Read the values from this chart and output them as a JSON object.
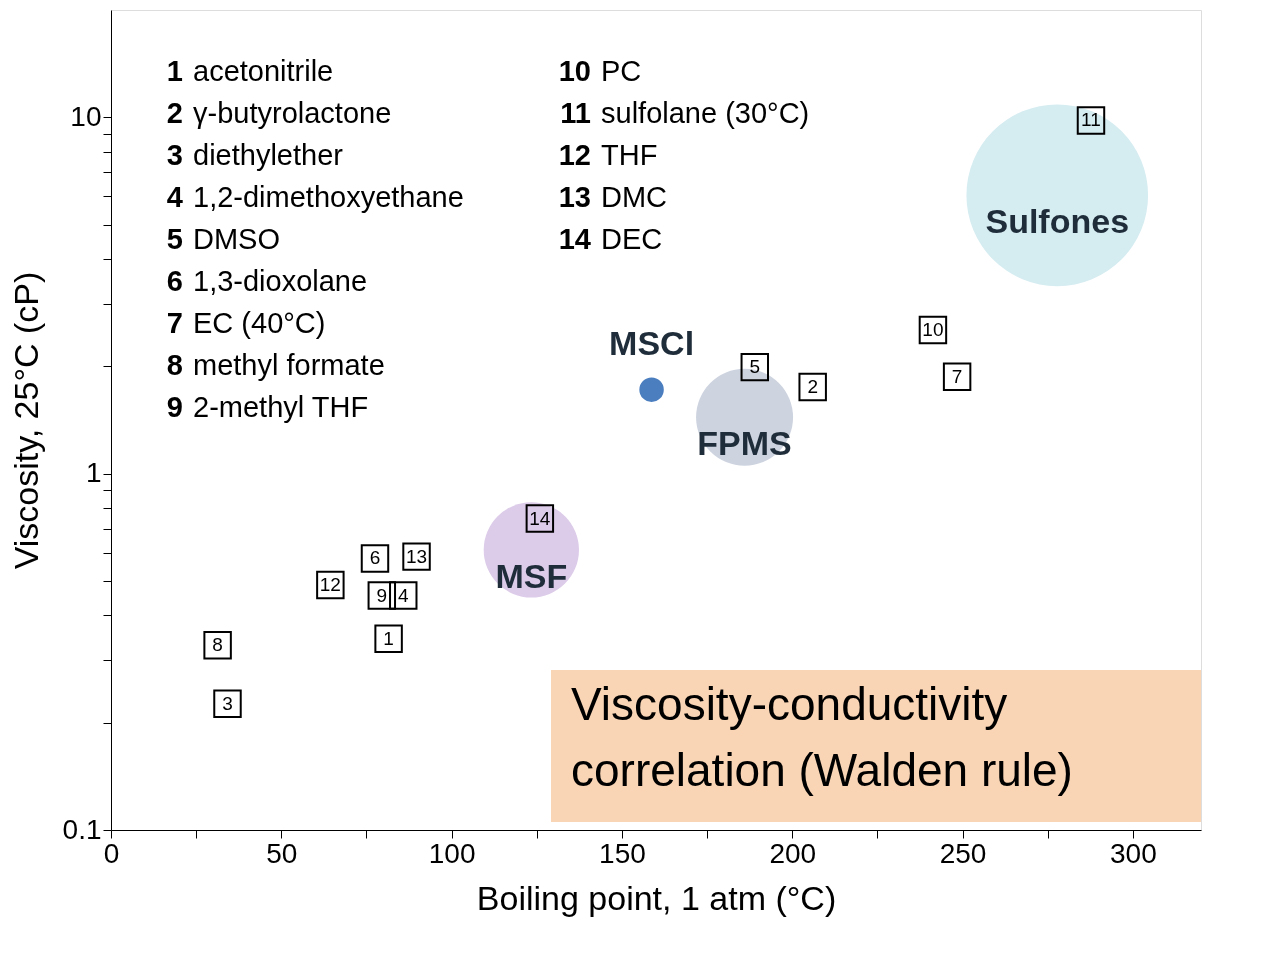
{
  "chart_data": {
    "type": "scatter",
    "xlabel": "Boiling point, 1 atm (°C)",
    "ylabel": "Viscosity, 25°C (cP)",
    "xlim": [
      0,
      320
    ],
    "ylim": [
      0.1,
      20
    ],
    "log": "y",
    "grid": false,
    "xticks": [
      0,
      {
        "value": 25,
        "label": null
      },
      50,
      {
        "value": 75,
        "label": null
      },
      100,
      {
        "value": 125,
        "label": null
      },
      150,
      {
        "value": 175,
        "label": null
      },
      200,
      {
        "value": 225,
        "label": null
      },
      250,
      {
        "value": 275,
        "label": null
      },
      300
    ],
    "yticks": [
      0.1,
      {
        "value": 0.2,
        "label": null
      },
      {
        "value": 0.3,
        "label": null
      },
      {
        "value": 0.4,
        "label": null
      },
      {
        "value": 0.5,
        "label": null
      },
      {
        "value": 0.6,
        "label": null
      },
      {
        "value": 0.7,
        "label": null
      },
      {
        "value": 0.8,
        "label": null
      },
      {
        "value": 0.9,
        "label": null
      },
      1,
      {
        "value": 2,
        "label": null
      },
      {
        "value": 3,
        "label": null
      },
      {
        "value": 4,
        "label": null
      },
      {
        "value": 5,
        "label": null
      },
      {
        "value": 6,
        "label": null
      },
      {
        "value": 7,
        "label": null
      },
      {
        "value": 8,
        "label": null
      },
      {
        "value": 9,
        "label": null
      },
      10
    ],
    "series": [
      {
        "type": "scatter",
        "marker": "square",
        "color": "#000000",
        "x": [
          81.5,
          206,
          34.2,
          85.8,
          189,
          77.5,
          248.4,
          31.3,
          79.5,
          241.3,
          287.7,
          64.4,
          89.7,
          125.9
        ],
        "values": [
          0.344,
          1.75,
          0.226,
          0.455,
          1.99,
          0.578,
          1.87,
          0.33,
          0.455,
          2.53,
          9.8,
          0.487,
          0.585,
          0.748
        ]
      },
      {
        "name": "MSCl",
        "type": "scatter",
        "marker": "circle",
        "color": "#4a7ebf",
        "x": [
          158.7
        ],
        "values": [
          1.72
        ]
      },
      {
        "name": "MSF",
        "type": "bubble",
        "color": "#dccbe9",
        "x": [
          123.4
        ],
        "values": [
          0.611
        ],
        "sizes": [
          0.275
        ]
      },
      {
        "name": "FPMS",
        "type": "bubble",
        "color": "#cdd3df",
        "x": [
          186
        ],
        "values": [
          1.44
        ],
        "sizes": [
          0.285
        ]
      },
      {
        "name": "Sulfones",
        "type": "bubble",
        "color": "#d5ecf1",
        "x": [
          277.8
        ],
        "values": [
          6.04
        ],
        "sizes": [
          1
        ]
      }
    ],
    "annotations": [
      "1 acetonitrile",
      "2 γ-butyrolactone",
      "3 diethylether",
      "4 1,2-dimethoxyethane",
      "5 DMSO",
      "6 1,3-dioxolane",
      "7 EC (40°C)",
      "8 methyl formate",
      "9 2-methyl THF",
      "10 PC",
      "11 sulfolane (30°C)",
      "12 THF",
      "13 DMC",
      "14 DEC",
      "Viscosity-conductivity\ncorrelation (Walden rule)",
      {
        "text": "1",
        "x": 81.5,
        "y": 0.344
      },
      {
        "text": "2",
        "x": 206,
        "y": 1.75
      },
      {
        "text": "3",
        "x": 34.2,
        "y": 0.226
      },
      {
        "text": "4",
        "x": 85.8,
        "y": 0.455
      },
      {
        "text": "5",
        "x": 189,
        "y": 1.99
      },
      {
        "text": "6",
        "x": 77.5,
        "y": 0.578
      },
      {
        "text": "7",
        "x": 248.4,
        "y": 1.87
      },
      {
        "text": "8",
        "x": 31.3,
        "y": 0.33
      },
      {
        "text": "9",
        "x": 79.5,
        "y": 0.455
      },
      {
        "text": "10",
        "x": 241.3,
        "y": 2.53
      },
      {
        "text": "11",
        "x": 287.7,
        "y": 9.8
      },
      {
        "text": "12",
        "x": 64.4,
        "y": 0.487
      },
      {
        "text": "13",
        "x": 89.7,
        "y": 0.585
      },
      {
        "text": "14",
        "x": 125.9,
        "y": 0.748
      }
    ]
  }
}
